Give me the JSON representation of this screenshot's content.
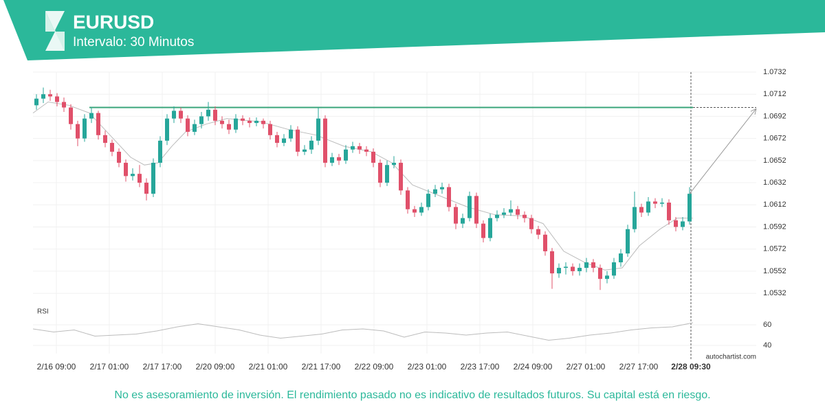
{
  "chart_data": {
    "type": "candlestick",
    "title": "EURUSD",
    "subtitle": "Intervalo: 30 Minutos",
    "colors": {
      "up": "#26a69a",
      "down": "#e0506a",
      "ma": "#bbbbbb",
      "resistance": "#3aa57a",
      "rsi": "#bbbbbb"
    },
    "grid": true,
    "xlim": [
      0,
      96
    ],
    "xticks": [
      {
        "value": 3.4,
        "label": "2/16 09:00"
      },
      {
        "value": 11.1,
        "label": "2/17 01:00"
      },
      {
        "value": 18.8,
        "label": "2/17 17:00"
      },
      {
        "value": 26.5,
        "label": "2/20 09:00"
      },
      {
        "value": 34.2,
        "label": "2/21 01:00"
      },
      {
        "value": 41.9,
        "label": "2/21 17:00"
      },
      {
        "value": 49.6,
        "label": "2/22 09:00"
      },
      {
        "value": 57.3,
        "label": "2/23 01:00"
      },
      {
        "value": 65.0,
        "label": "2/23 17:00"
      },
      {
        "value": 72.7,
        "label": "2/24 09:00"
      },
      {
        "value": 80.4,
        "label": "2/27 01:00"
      },
      {
        "value": 88.1,
        "label": "2/27 17:00"
      },
      {
        "value": 95.7,
        "label": "2/28 09:30"
      }
    ],
    "ylim": [
      1.0524,
      1.0732
    ],
    "yticks": [
      1.0732,
      1.0712,
      1.0692,
      1.0672,
      1.0652,
      1.0632,
      1.0612,
      1.0592,
      1.0572,
      1.0552,
      1.0532
    ],
    "ohlc": [
      [
        1.0702,
        1.0712,
        1.0698,
        1.0708
      ],
      [
        1.0708,
        1.0718,
        1.0704,
        1.0712
      ],
      [
        1.0712,
        1.0716,
        1.0706,
        1.071
      ],
      [
        1.071,
        1.0713,
        1.0701,
        1.0705
      ],
      [
        1.0705,
        1.0709,
        1.0696,
        1.07
      ],
      [
        1.07,
        1.0703,
        1.068,
        1.0685
      ],
      [
        1.0685,
        1.0688,
        1.0665,
        1.0672
      ],
      [
        1.0672,
        1.0694,
        1.0669,
        1.069
      ],
      [
        1.069,
        1.07,
        1.0686,
        1.0695
      ],
      [
        1.0695,
        1.0697,
        1.0671,
        1.0675
      ],
      [
        1.0675,
        1.0679,
        1.0664,
        1.0668
      ],
      [
        1.0668,
        1.0671,
        1.0656,
        1.066
      ],
      [
        1.066,
        1.0663,
        1.0646,
        1.065
      ],
      [
        1.065,
        1.0653,
        1.0633,
        1.0638
      ],
      [
        1.0638,
        1.0645,
        1.0634,
        1.064
      ],
      [
        1.064,
        1.0648,
        1.0628,
        1.0632
      ],
      [
        1.0632,
        1.0636,
        1.0616,
        1.0622
      ],
      [
        1.0622,
        1.0654,
        1.0619,
        1.065
      ],
      [
        1.065,
        1.0674,
        1.0646,
        1.067
      ],
      [
        1.067,
        1.0694,
        1.0666,
        1.069
      ],
      [
        1.069,
        1.0701,
        1.0686,
        1.0697
      ],
      [
        1.0697,
        1.07,
        1.0686,
        1.069
      ],
      [
        1.069,
        1.0693,
        1.0674,
        1.0678
      ],
      [
        1.0678,
        1.0689,
        1.0675,
        1.0685
      ],
      [
        1.0685,
        1.0696,
        1.0681,
        1.0692
      ],
      [
        1.0692,
        1.0705,
        1.0688,
        1.0698
      ],
      [
        1.0698,
        1.0701,
        1.0684,
        1.0688
      ],
      [
        1.0688,
        1.0692,
        1.0681,
        1.0685
      ],
      [
        1.0685,
        1.0689,
        1.0676,
        1.068
      ],
      [
        1.068,
        1.0694,
        1.0677,
        1.069
      ],
      [
        1.069,
        1.0693,
        1.0684,
        1.0688
      ],
      [
        1.0688,
        1.0691,
        1.0682,
        1.0686
      ],
      [
        1.0686,
        1.0691,
        1.0683,
        1.0688
      ],
      [
        1.0688,
        1.069,
        1.0681,
        1.0685
      ],
      [
        1.0685,
        1.0688,
        1.0671,
        1.0675
      ],
      [
        1.0675,
        1.0678,
        1.0664,
        1.0668
      ],
      [
        1.0668,
        1.0676,
        1.0665,
        1.0672
      ],
      [
        1.0672,
        1.0684,
        1.0669,
        1.068
      ],
      [
        1.068,
        1.0683,
        1.0656,
        1.066
      ],
      [
        1.066,
        1.0666,
        1.0657,
        1.0662
      ],
      [
        1.0662,
        1.0674,
        1.0658,
        1.067
      ],
      [
        1.067,
        1.07,
        1.0666,
        1.069
      ],
      [
        1.069,
        1.0693,
        1.0646,
        1.065
      ],
      [
        1.065,
        1.0659,
        1.0647,
        1.0655
      ],
      [
        1.0655,
        1.0658,
        1.0648,
        1.0652
      ],
      [
        1.0652,
        1.0666,
        1.0649,
        1.0662
      ],
      [
        1.0662,
        1.0669,
        1.0659,
        1.0665
      ],
      [
        1.0665,
        1.0668,
        1.0658,
        1.0662
      ],
      [
        1.0662,
        1.0665,
        1.0656,
        1.066
      ],
      [
        1.066,
        1.0663,
        1.0646,
        1.065
      ],
      [
        1.065,
        1.0653,
        1.0628,
        1.0632
      ],
      [
        1.0632,
        1.0652,
        1.0629,
        1.0648
      ],
      [
        1.0648,
        1.0656,
        1.0645,
        1.065
      ],
      [
        1.065,
        1.0653,
        1.0621,
        1.0625
      ],
      [
        1.0625,
        1.0628,
        1.0604,
        1.0608
      ],
      [
        1.0608,
        1.0611,
        1.0601,
        1.0605
      ],
      [
        1.0605,
        1.0614,
        1.0602,
        1.061
      ],
      [
        1.061,
        1.0626,
        1.0607,
        1.0622
      ],
      [
        1.0622,
        1.063,
        1.0619,
        1.0626
      ],
      [
        1.0626,
        1.0632,
        1.0622,
        1.0628
      ],
      [
        1.0628,
        1.0631,
        1.0606,
        1.061
      ],
      [
        1.061,
        1.0613,
        1.059,
        1.0595
      ],
      [
        1.0595,
        1.0604,
        1.0591,
        1.06
      ],
      [
        1.06,
        1.0624,
        1.0597,
        1.062
      ],
      [
        1.062,
        1.0623,
        1.0591,
        1.0595
      ],
      [
        1.0595,
        1.0598,
        1.0578,
        1.0582
      ],
      [
        1.0582,
        1.0604,
        1.0579,
        1.06
      ],
      [
        1.06,
        1.0607,
        1.0597,
        1.0603
      ],
      [
        1.0603,
        1.0609,
        1.06,
        1.0605
      ],
      [
        1.0605,
        1.0616,
        1.0602,
        1.0608
      ],
      [
        1.0608,
        1.0611,
        1.0599,
        1.0603
      ],
      [
        1.0603,
        1.0606,
        1.0596,
        1.06
      ],
      [
        1.06,
        1.0603,
        1.0586,
        1.059
      ],
      [
        1.059,
        1.0593,
        1.0581,
        1.0585
      ],
      [
        1.0585,
        1.0588,
        1.0566,
        1.057
      ],
      [
        1.057,
        1.0573,
        1.0536,
        1.055
      ],
      [
        1.055,
        1.0559,
        1.0546,
        1.0555
      ],
      [
        1.0555,
        1.056,
        1.0549,
        1.0556
      ],
      [
        1.0556,
        1.0559,
        1.0548,
        1.0552
      ],
      [
        1.0552,
        1.0559,
        1.0548,
        1.0555
      ],
      [
        1.0555,
        1.0564,
        1.0551,
        1.056
      ],
      [
        1.056,
        1.0563,
        1.0551,
        1.0555
      ],
      [
        1.0555,
        1.0558,
        1.0535,
        1.0545
      ],
      [
        1.0545,
        1.0552,
        1.0541,
        1.0548
      ],
      [
        1.0548,
        1.0564,
        1.0545,
        1.056
      ],
      [
        1.056,
        1.0572,
        1.0556,
        1.0568
      ],
      [
        1.0568,
        1.0594,
        1.0565,
        1.059
      ],
      [
        1.059,
        1.0624,
        1.0587,
        1.061
      ],
      [
        1.061,
        1.0613,
        1.0601,
        1.0605
      ],
      [
        1.0605,
        1.0619,
        1.0602,
        1.0615
      ],
      [
        1.0615,
        1.0618,
        1.0609,
        1.0613
      ],
      [
        1.0613,
        1.0618,
        1.061,
        1.0614
      ],
      [
        1.0614,
        1.0617,
        1.0594,
        1.0598
      ],
      [
        1.0598,
        1.0601,
        1.0588,
        1.0592
      ],
      [
        1.0592,
        1.0601,
        1.0589,
        1.0597
      ],
      [
        1.0597,
        1.0628,
        1.0594,
        1.0622
      ]
    ],
    "moving_average": {
      "x": [
        0,
        2.2,
        5.2,
        8.2,
        11.2,
        14.2,
        16.2,
        18.2,
        20.2,
        22.2,
        25.2,
        28.2,
        33.2,
        37.2,
        41.2,
        45.2,
        49.2,
        52.2,
        55.2,
        59.2,
        63.2,
        67.2,
        71.2,
        74.2,
        77.2,
        80.2,
        83.2,
        85.7,
        88.2,
        91.2,
        93.7,
        96
      ],
      "values": [
        1.0695,
        1.0705,
        1.0702,
        1.0695,
        1.0675,
        1.0655,
        1.0648,
        1.065,
        1.0665,
        1.0678,
        1.0685,
        1.069,
        1.0687,
        1.068,
        1.0675,
        1.0665,
        1.066,
        1.065,
        1.063,
        1.062,
        1.061,
        1.0603,
        1.0602,
        1.0595,
        1.057,
        1.056,
        1.0553,
        1.0555,
        1.0575,
        1.059,
        1.06,
        1.06
      ]
    },
    "resistance": 1.07,
    "resistance_start": 8.2,
    "forecast_target": 1.0699,
    "rsi": {
      "label": "RSI",
      "ylim": [
        35,
        70
      ],
      "yticks": [
        60,
        40
      ],
      "x": [
        0,
        3,
        6,
        9,
        12,
        15,
        18,
        21,
        24,
        27,
        30,
        33,
        36,
        39,
        42,
        45,
        48,
        51,
        54,
        57,
        60,
        63,
        66,
        69,
        72,
        75,
        78,
        81,
        84,
        87,
        90,
        93,
        96
      ],
      "values": [
        56,
        53,
        55,
        49,
        50,
        51,
        54,
        58,
        61,
        58,
        55,
        50,
        47,
        49,
        51,
        55,
        56,
        54,
        48,
        53,
        52,
        50,
        52,
        53,
        49,
        45,
        47,
        50,
        52,
        55,
        57,
        58,
        62
      ]
    },
    "source": "autochartist.com",
    "disclaimer": "No es asesoramiento de inversión. El rendimiento pasado no es indicativo de resultados futuros. Su capital está en riesgo."
  }
}
